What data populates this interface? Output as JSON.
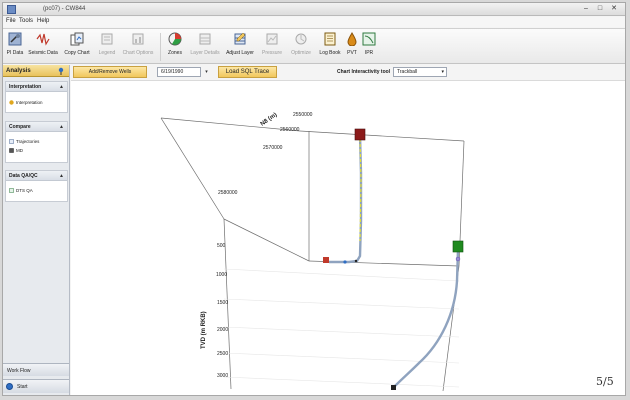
{
  "window": {
    "title": "(pc07) - CW844",
    "controls": [
      "–",
      "□",
      "✕"
    ]
  },
  "menu": [
    "File",
    "Tools",
    "Help"
  ],
  "toolbar": [
    {
      "label": "PI Data",
      "icon": "tools-icon",
      "enabled": true
    },
    {
      "label": "Seismic Data",
      "icon": "seismic-icon",
      "enabled": true
    },
    {
      "label": "Copy Chart",
      "icon": "copy-chart-icon",
      "enabled": true
    },
    {
      "label": "Legend",
      "icon": "legend-icon",
      "enabled": false
    },
    {
      "label": "Chart Options",
      "icon": "chart-options-icon",
      "enabled": false
    },
    {
      "label": "Zones",
      "icon": "zones-icon",
      "enabled": true
    },
    {
      "label": "Layer Details",
      "icon": "layer-details-icon",
      "enabled": false
    },
    {
      "label": "Adjust Layer",
      "icon": "adjust-layer-icon",
      "enabled": true
    },
    {
      "label": "Pressure",
      "icon": "pressure-icon",
      "enabled": false
    },
    {
      "label": "Optimize",
      "icon": "optimize-icon",
      "enabled": false
    },
    {
      "label": "Log Book",
      "icon": "log-book-icon",
      "enabled": true
    },
    {
      "label": "PVT",
      "icon": "pvt-icon",
      "enabled": true
    },
    {
      "label": "IPR",
      "icon": "ipr-icon",
      "enabled": true
    }
  ],
  "left_panel": {
    "header": "Analysis",
    "sections": [
      {
        "title": "Interpretation",
        "items": [
          "Interpretation"
        ]
      },
      {
        "title": "Compare",
        "items": [
          "Trajectories",
          "MD"
        ]
      },
      {
        "title": "Data QA/QC",
        "items": [
          "DTS QA"
        ]
      }
    ],
    "bottom": [
      "Work Flow",
      "Start"
    ]
  },
  "controls": {
    "wells_button": "Add/Remove Wells",
    "date": "6/19/1990",
    "load_button": "Load SQL Trace",
    "interactivity_label": "Chart Interactivity tool",
    "interactivity_value": "Trackball"
  },
  "chart_data": {
    "type": "3d-trajectory",
    "axes": {
      "north": {
        "label": "N8 (m)",
        "ticks": [
          "2550000",
          "2560000",
          "2570000",
          "2580000"
        ]
      },
      "tvd": {
        "label": "TVD (m RKB)",
        "ticks": [
          "500",
          "1000",
          "1500",
          "2000",
          "2500",
          "3000"
        ]
      }
    },
    "wells": [
      {
        "marker_color": "#8b1a1a",
        "trajectory": "near-vertical then bends at bottom"
      },
      {
        "marker_color": "#1f8a1f",
        "trajectory": "vertical then deviates downward-left"
      }
    ]
  },
  "page_badge": "5/5"
}
